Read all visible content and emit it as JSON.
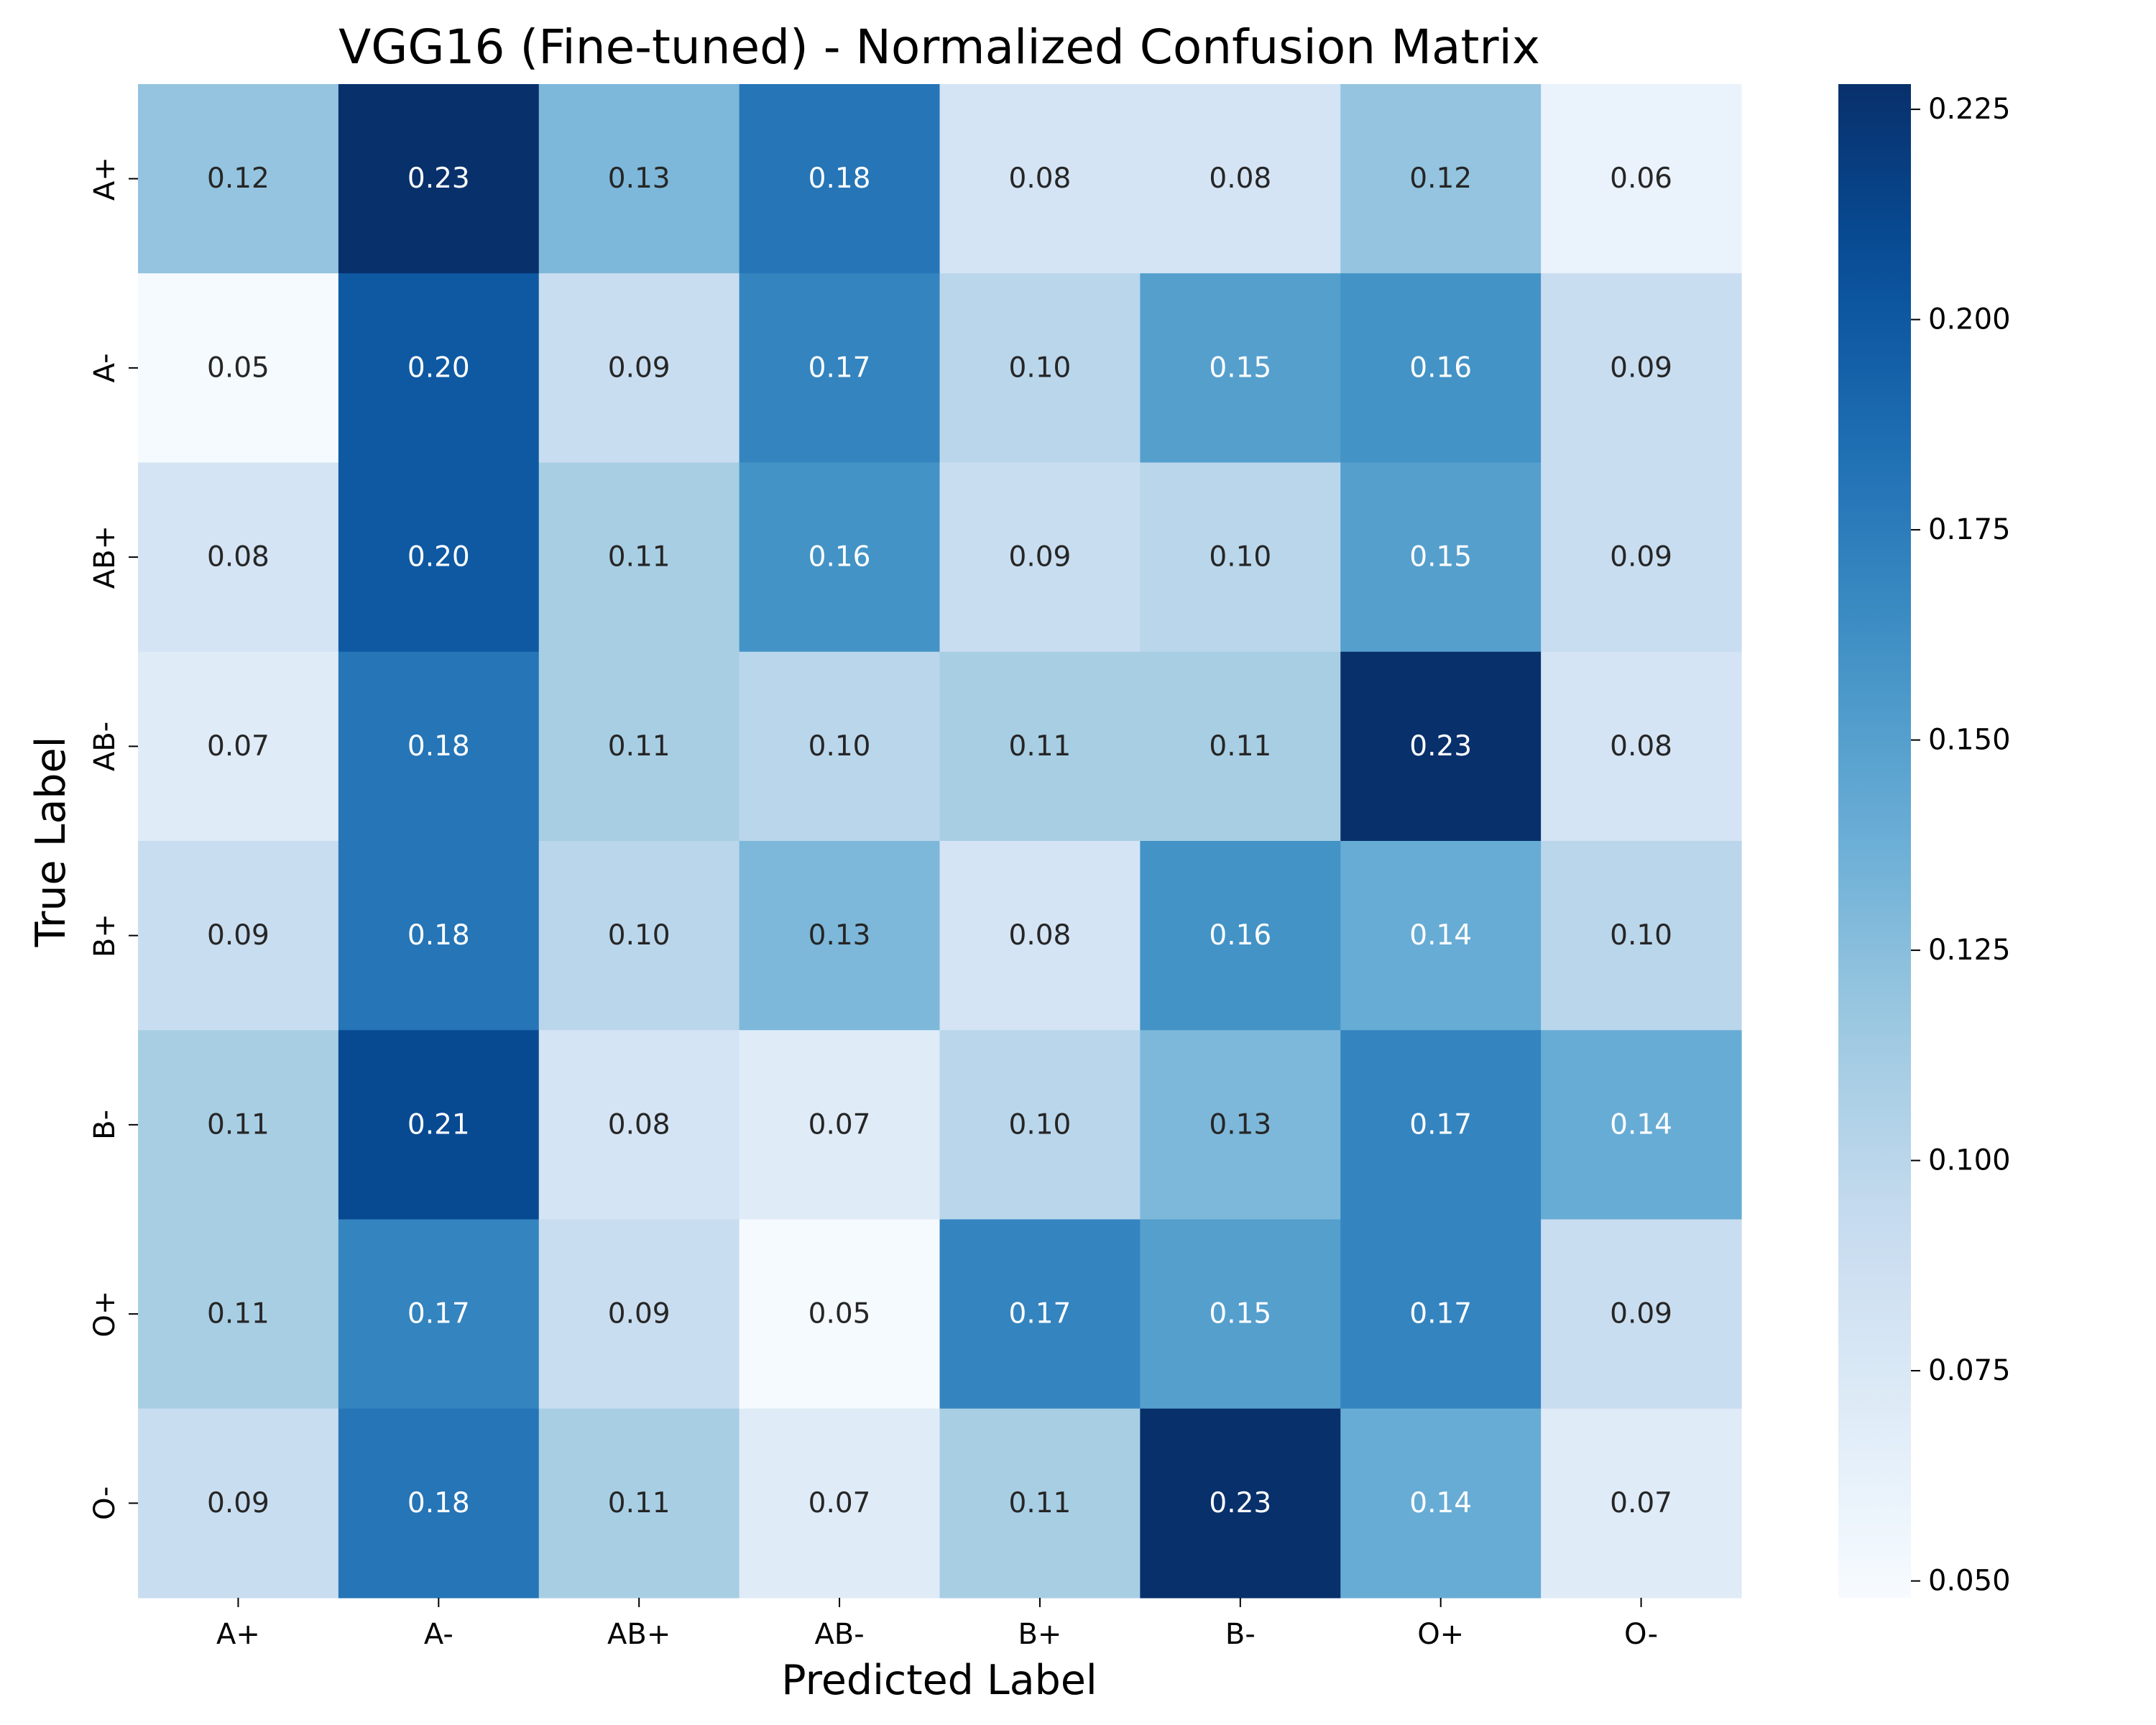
{
  "chart_data": {
    "type": "heatmap",
    "title": "VGG16 (Fine-tuned) - Normalized Confusion Matrix",
    "xlabel": "Predicted Label",
    "ylabel": "True Label",
    "x_categories": [
      "A+",
      "A-",
      "AB+",
      "AB-",
      "B+",
      "B-",
      "O+",
      "O-"
    ],
    "y_categories": [
      "A+",
      "A-",
      "AB+",
      "AB-",
      "B+",
      "B-",
      "O+",
      "O-"
    ],
    "values": [
      [
        0.12,
        0.23,
        0.13,
        0.18,
        0.08,
        0.08,
        0.12,
        0.06
      ],
      [
        0.05,
        0.2,
        0.09,
        0.17,
        0.1,
        0.15,
        0.16,
        0.09
      ],
      [
        0.08,
        0.2,
        0.11,
        0.16,
        0.09,
        0.1,
        0.15,
        0.09
      ],
      [
        0.07,
        0.18,
        0.11,
        0.1,
        0.11,
        0.11,
        0.23,
        0.08
      ],
      [
        0.09,
        0.18,
        0.1,
        0.13,
        0.08,
        0.16,
        0.14,
        0.1
      ],
      [
        0.11,
        0.21,
        0.08,
        0.07,
        0.1,
        0.13,
        0.17,
        0.14
      ],
      [
        0.11,
        0.17,
        0.09,
        0.05,
        0.17,
        0.15,
        0.17,
        0.09
      ],
      [
        0.09,
        0.18,
        0.11,
        0.07,
        0.11,
        0.23,
        0.14,
        0.07
      ]
    ],
    "colormap": "Blues",
    "colorbar": {
      "range": [
        0.048,
        0.228
      ],
      "ticks": [
        0.05,
        0.075,
        0.1,
        0.125,
        0.15,
        0.175,
        0.2,
        0.225
      ],
      "tick_labels": [
        "0.050",
        "0.075",
        "0.100",
        "0.125",
        "0.150",
        "0.175",
        "0.200",
        "0.225"
      ],
      "position": "right"
    },
    "grid": false
  }
}
